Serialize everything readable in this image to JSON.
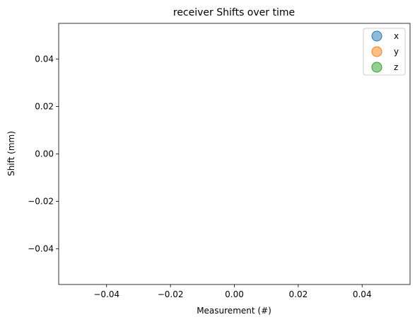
{
  "chart_data": {
    "type": "scatter",
    "title": "receiver Shifts over time",
    "xlabel": "Measurement (#)",
    "ylabel": "Shift (mm)",
    "xlim": [
      -0.055,
      0.055
    ],
    "ylim": [
      -0.055,
      0.055
    ],
    "xticks": [
      -0.04,
      -0.02,
      0.0,
      0.02,
      0.04
    ],
    "xtick_labels": [
      "−0.04",
      "−0.02",
      "0.00",
      "0.02",
      "0.04"
    ],
    "yticks": [
      0.04,
      0.02,
      0.0,
      -0.02,
      -0.04
    ],
    "ytick_labels": [
      "0.04",
      "0.02",
      "0.00",
      "−0.02",
      "−0.04"
    ],
    "grid": false,
    "legend_position": "top-right",
    "series": [
      {
        "name": "x",
        "color": "#1f77b4",
        "x": [],
        "y": []
      },
      {
        "name": "y",
        "color": "#ff7f0e",
        "x": [],
        "y": []
      },
      {
        "name": "z",
        "color": "#2ca02c",
        "x": [],
        "y": []
      }
    ]
  }
}
